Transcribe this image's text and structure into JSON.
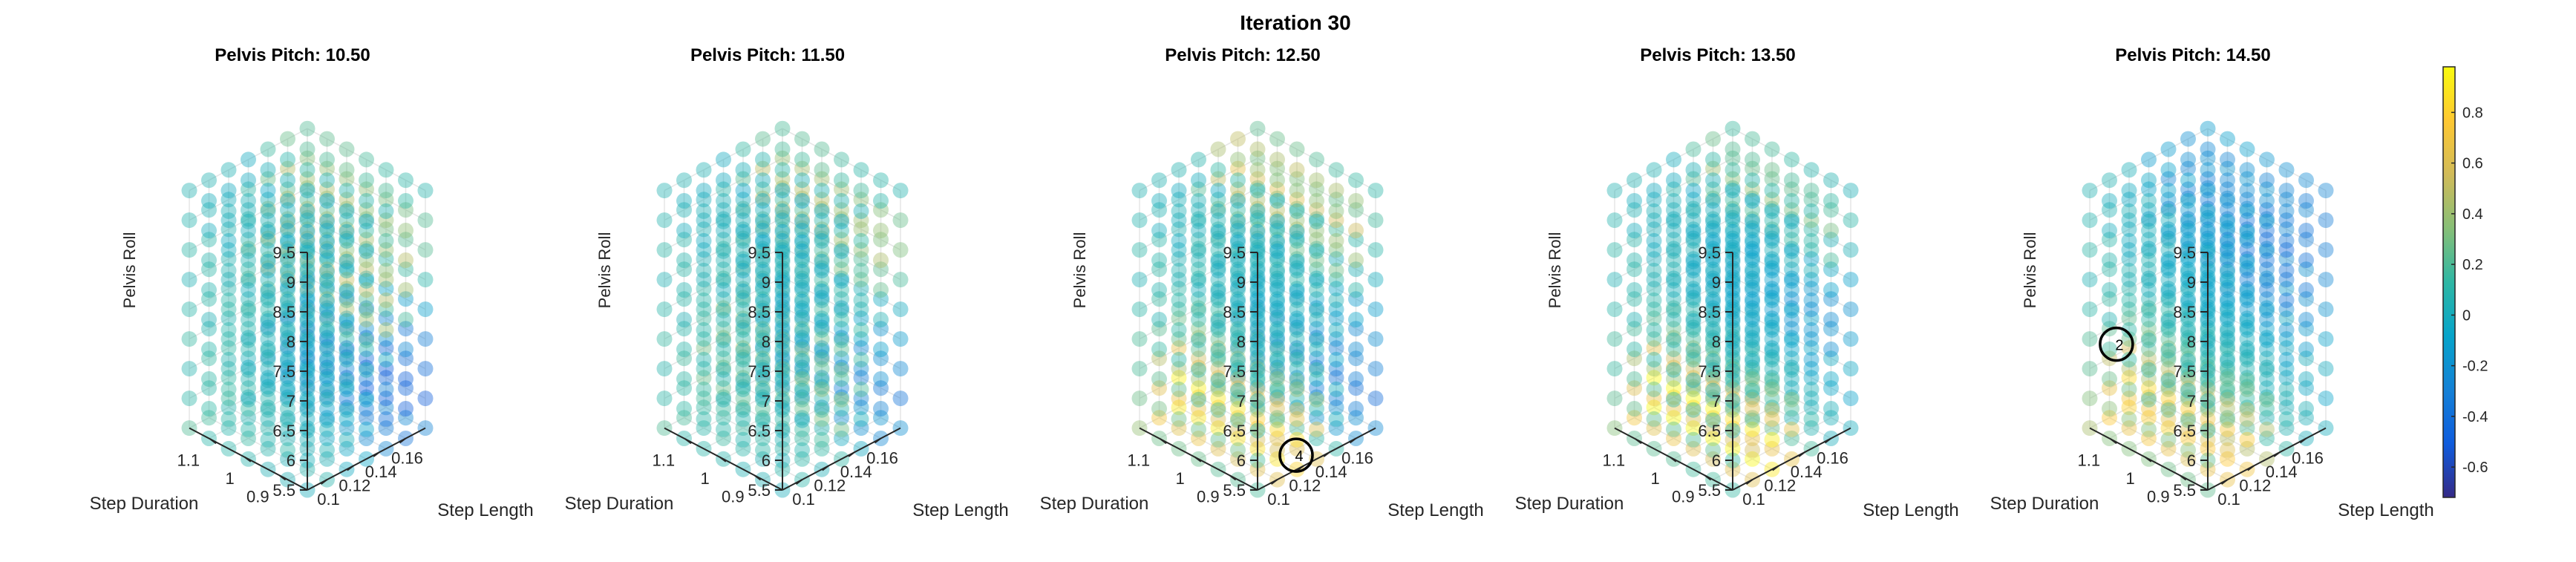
{
  "chart_data": {
    "type": "scatter",
    "title": "Iteration 30",
    "panels": [
      {
        "title": "Pelvis Pitch: 10.50",
        "pitch": 10.5,
        "hot": [
          {
            "t": 0.7,
            "r": 0.55,
            "w": 0.22,
            "v": 0.6
          },
          {
            "t": 0.9,
            "r": 0.85,
            "w": 0.25,
            "v": 0.45
          }
        ],
        "cold": [
          {
            "t": 0.85,
            "r": 0.2,
            "w": 0.3,
            "v": -0.55
          }
        ]
      },
      {
        "title": "Pelvis Pitch: 11.50",
        "pitch": 11.5,
        "hot": [
          {
            "t": 0.6,
            "r": 0.25,
            "w": 0.25,
            "v": 0.45
          },
          {
            "t": 0.9,
            "r": 0.8,
            "w": 0.25,
            "v": 0.55
          }
        ],
        "cold": [
          {
            "t": 0.85,
            "r": 0.15,
            "w": 0.25,
            "v": -0.45
          }
        ]
      },
      {
        "title": "Pelvis Pitch: 12.50",
        "pitch": 12.5,
        "hot": [
          {
            "t": 0.35,
            "r": 0.05,
            "w": 0.28,
            "v": 0.85
          },
          {
            "t": 0.8,
            "r": 0.9,
            "w": 0.25,
            "v": 0.65
          }
        ],
        "cold": [
          {
            "t": 0.9,
            "r": 0.15,
            "w": 0.25,
            "v": -0.4
          }
        ]
      },
      {
        "title": "Pelvis Pitch: 13.50",
        "pitch": 13.5,
        "hot": [
          {
            "t": 0.35,
            "r": 0.05,
            "w": 0.25,
            "v": 0.95
          },
          {
            "t": 0.85,
            "r": 0.85,
            "w": 0.25,
            "v": 0.5
          }
        ],
        "cold": [
          {
            "t": 0.8,
            "r": 0.6,
            "w": 0.3,
            "v": -0.25
          }
        ]
      },
      {
        "title": "Pelvis Pitch: 14.50",
        "pitch": 14.5,
        "hot": [
          {
            "t": 0.3,
            "r": 0.05,
            "w": 0.28,
            "v": 0.75
          }
        ],
        "cold": [
          {
            "t": 0.75,
            "r": 0.75,
            "w": 0.3,
            "v": -0.35
          }
        ]
      }
    ],
    "markers": [
      {
        "panel": 2,
        "label": "4",
        "step_length": 0.125,
        "step_duration": 0.86,
        "pelvis_roll": 5.5
      },
      {
        "panel": 4,
        "label": "2",
        "step_length": 0.1,
        "step_duration": 1.14,
        "pelvis_roll": 6.8
      }
    ],
    "axes": {
      "x": {
        "label": "Step Length",
        "range": [
          0.085,
          0.175
        ],
        "grid_values": [
          0.085,
          0.1,
          0.115,
          0.13,
          0.145,
          0.16,
          0.175
        ],
        "tick_values": [
          0.1,
          0.12,
          0.14,
          0.16
        ],
        "tick_labels": [
          "0.1",
          "0.12",
          "0.14",
          "0.16"
        ]
      },
      "y": {
        "label": "Step Duration",
        "range": [
          0.82,
          1.16
        ],
        "grid_values": [
          0.82,
          0.87,
          0.92,
          0.97,
          1.02,
          1.07,
          1.12
        ],
        "tick_values": [
          0.9,
          1.0,
          1.1
        ],
        "tick_labels": [
          "0.9",
          "1",
          "1.1"
        ]
      },
      "z": {
        "label": "Pelvis Roll",
        "range": [
          5.5,
          9.5
        ],
        "grid_values": [
          5.5,
          6.0,
          6.5,
          7.0,
          7.5,
          8.0,
          8.5,
          9.0,
          9.5
        ],
        "tick_values": [
          5.5,
          6,
          6.5,
          7,
          7.5,
          8,
          8.5,
          9,
          9.5
        ],
        "tick_labels": [
          "5.5",
          "6",
          "6.5",
          "7",
          "7.5",
          "8",
          "8.5",
          "9",
          "9.5"
        ]
      }
    },
    "colorbar": {
      "range": [
        -0.72,
        0.98
      ],
      "tick_values": [
        -0.6,
        -0.4,
        -0.2,
        0,
        0.2,
        0.4,
        0.6,
        0.8
      ],
      "tick_labels": [
        "-0.6",
        "-0.4",
        "-0.2",
        "0",
        "0.2",
        "0.4",
        "0.6",
        "0.8"
      ],
      "colormap": "parula",
      "stops": [
        "#352a87",
        "#0f5cdd",
        "#1481d6",
        "#06a4ca",
        "#2eb7a4",
        "#87bf77",
        "#d1bb59",
        "#fec832",
        "#f9fb0e"
      ]
    },
    "grid": true,
    "legend": "colorbar-right"
  }
}
